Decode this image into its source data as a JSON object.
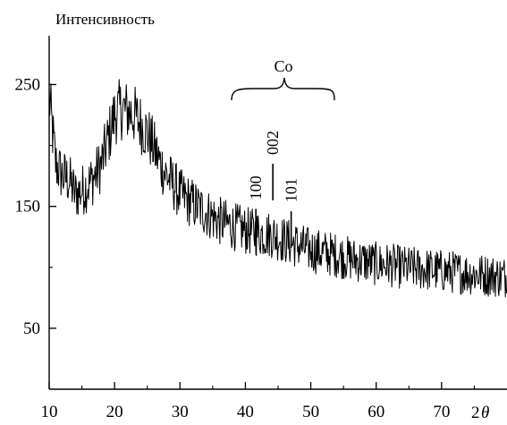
{
  "chart_data": {
    "type": "line",
    "title": "",
    "ylabel": "Интенсивность",
    "xlabel_prefix": "2",
    "xlabel_symbol": "θ",
    "xlim": [
      10,
      80
    ],
    "ylim": [
      0,
      290
    ],
    "x_ticks": [
      10,
      20,
      30,
      40,
      50,
      60,
      70
    ],
    "x_tick_labels": [
      "10",
      "20",
      "30",
      "40",
      "50",
      "60",
      "70"
    ],
    "y_ticks": [
      50,
      150,
      250
    ],
    "y_tick_labels": [
      "50",
      "150",
      "250"
    ],
    "grid": false,
    "line_color": "#000000",
    "series": [
      {
        "x": [
          10,
          11,
          12,
          13,
          14,
          15,
          16,
          17,
          18,
          19,
          20,
          21,
          22,
          23,
          24,
          25,
          26,
          27,
          28,
          29,
          30,
          32,
          34,
          36,
          38,
          40,
          42,
          44,
          46,
          48,
          50,
          52,
          54,
          56,
          58,
          60,
          62,
          64,
          66,
          68,
          70,
          72,
          74,
          76,
          78,
          80
        ],
        "values": [
          240,
          185,
          175,
          172,
          160,
          163,
          168,
          175,
          185,
          205,
          225,
          230,
          228,
          225,
          218,
          210,
          198,
          185,
          175,
          168,
          160,
          152,
          145,
          138,
          134,
          130,
          128,
          127,
          122,
          118,
          114,
          112,
          110,
          107,
          105,
          103,
          102,
          100,
          99,
          98,
          97,
          96,
          95,
          94,
          93,
          92
        ]
      }
    ],
    "annotations": {
      "group_label": "Co",
      "peaks": [
        {
          "label": "100",
          "x": 41.6,
          "height": 148
        },
        {
          "label": "002",
          "x": 44.2,
          "height": 185
        },
        {
          "label": "101",
          "x": 47.0,
          "height": 146
        }
      ]
    }
  }
}
